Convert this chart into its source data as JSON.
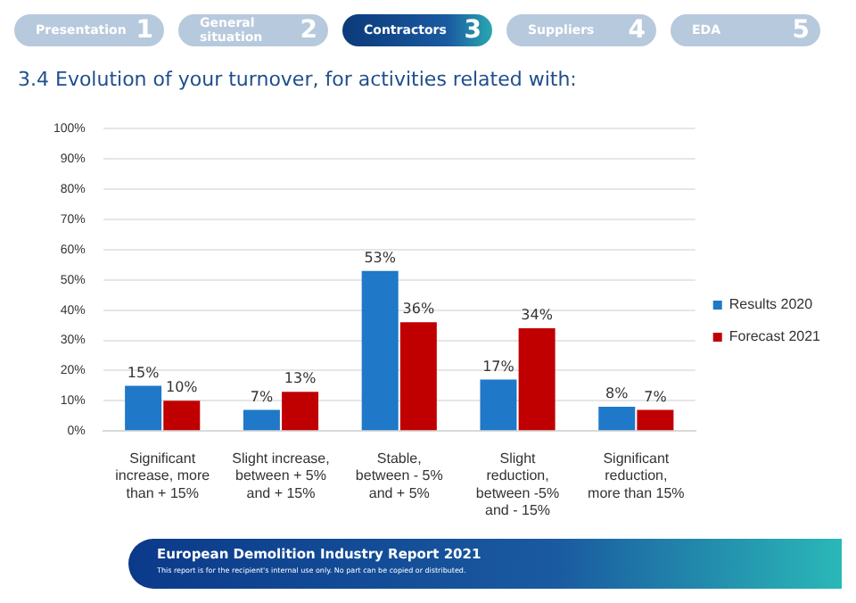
{
  "chart_data": {
    "type": "bar",
    "title": "3.4  Evolution of your turnover, for activities related with:",
    "categories": [
      "Significant increase, more than + 15%",
      "Slight increase, between + 5% and + 15%",
      "Stable, between - 5% and + 5%",
      "Slight reduction, between -5% and - 15%",
      "Significant reduction, more than 15%"
    ],
    "series": [
      {
        "name": "Results 2020",
        "color": "#1f78c8",
        "values": [
          15,
          7,
          53,
          17,
          8
        ],
        "value_labels": [
          "15%",
          "7%",
          "53%",
          "17%",
          "8%"
        ]
      },
      {
        "name": "Forecast 2021",
        "color": "#c00000",
        "values": [
          10,
          13,
          36,
          34,
          7
        ],
        "value_labels": [
          "10%",
          "13%",
          "36%",
          "34%",
          "7%"
        ]
      }
    ],
    "ylim": [
      0,
      100
    ],
    "yticks": [
      {
        "value": 0,
        "label": "0%"
      },
      {
        "value": 10,
        "label": "10%"
      },
      {
        "value": 20,
        "label": "20%"
      },
      {
        "value": 30,
        "label": "30%"
      },
      {
        "value": 40,
        "label": "40%"
      },
      {
        "value": 50,
        "label": "50%"
      },
      {
        "value": 60,
        "label": "60%"
      },
      {
        "value": 70,
        "label": "70%"
      },
      {
        "value": 80,
        "label": "80%"
      },
      {
        "value": 90,
        "label": "90%"
      },
      {
        "value": 100,
        "label": "100%"
      }
    ],
    "grid": "y",
    "legend": "right",
    "annotations": [
      "Presentation",
      "1",
      "General situation",
      "2",
      "Contractors",
      "3",
      "Suppliers",
      "4",
      "EDA",
      "5",
      "European Demolition Industry Report 2021",
      "This report is for the recipient's internal use only. No part can be copied or distributed."
    ]
  }
}
